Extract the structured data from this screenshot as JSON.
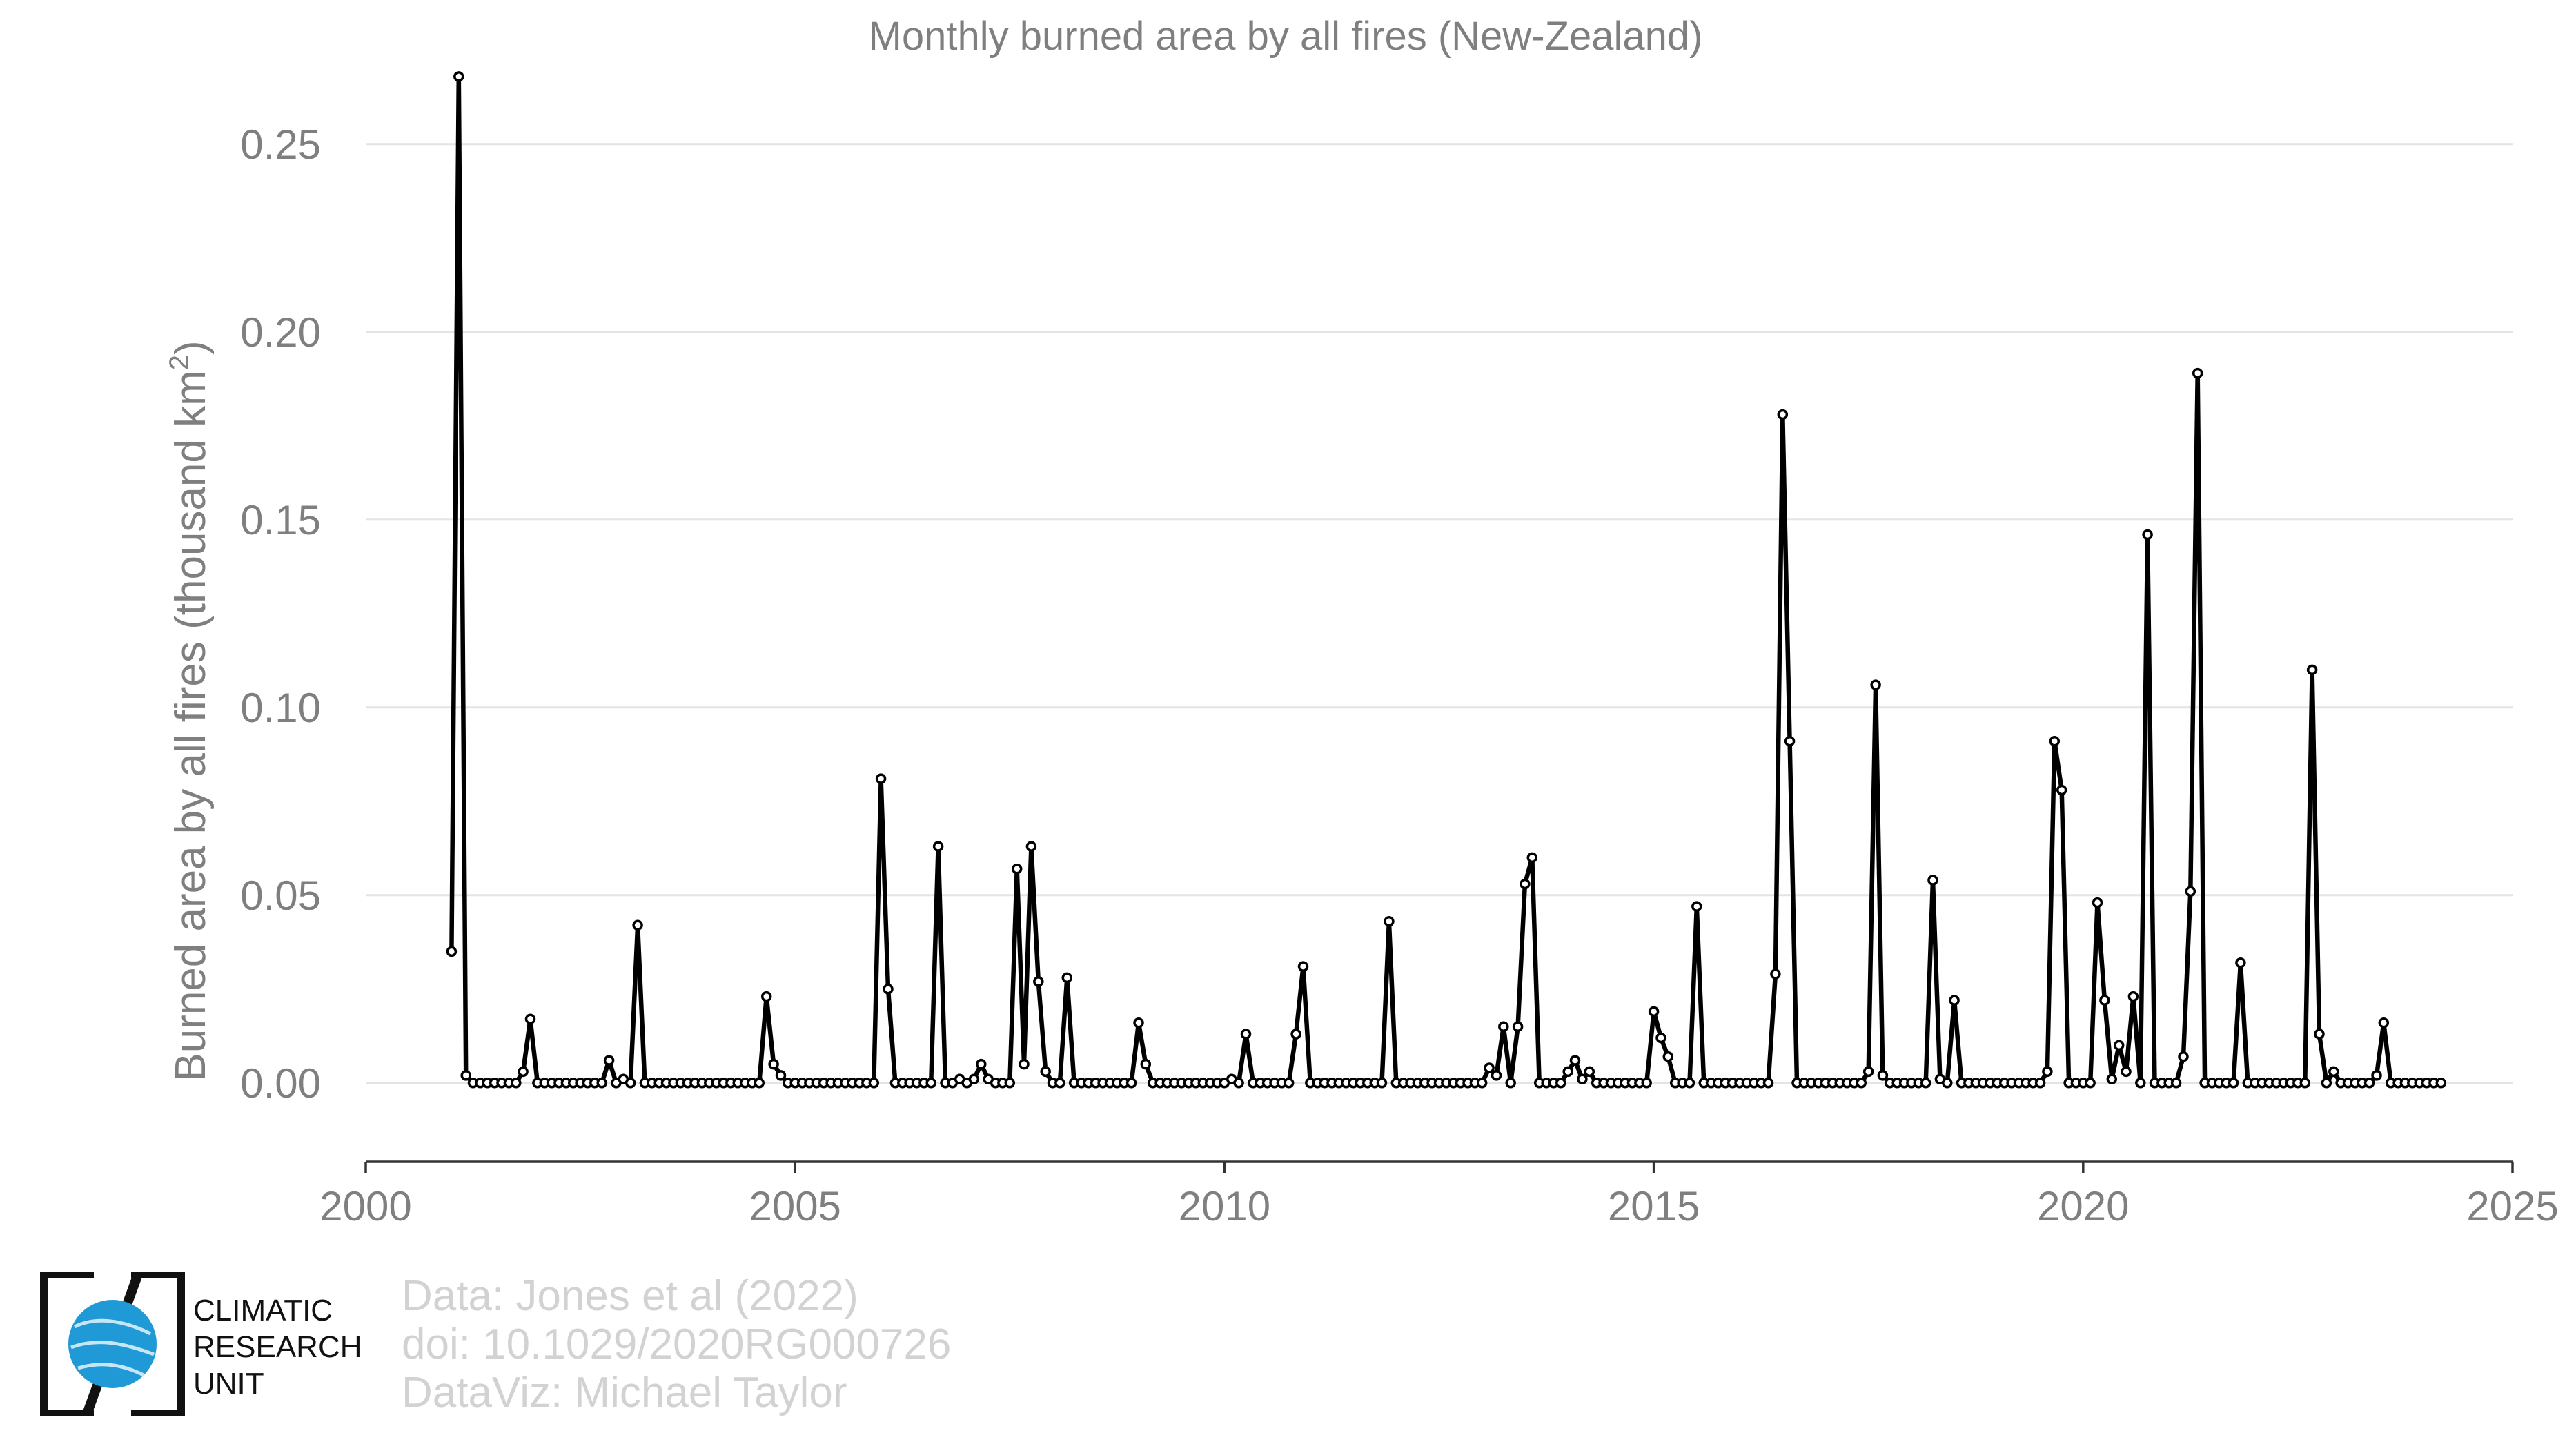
{
  "chart_data": {
    "type": "line",
    "title": "Monthly burned area by all fires (New-Zealand)",
    "ylabel": "Burned area by all fires (thousand km",
    "ylabel_sup": "2",
    "ylabel_end": ")",
    "xlabel": "",
    "xlim": [
      2000,
      2025
    ],
    "ylim": [
      -0.021,
      0.27
    ],
    "x_ticks": [
      2000,
      2005,
      2010,
      2015,
      2020,
      2025
    ],
    "x_tick_labels": [
      "2000",
      "2005",
      "2010",
      "2015",
      "2020",
      "2025"
    ],
    "y_ticks": [
      0,
      0.05,
      0.1,
      0.15,
      0.2,
      0.25
    ],
    "y_tick_labels": [
      "0.00",
      "0.05",
      "0.10",
      "0.15",
      "0.20",
      "0.25"
    ],
    "grid": true,
    "start": "2001-01",
    "frequency": "monthly",
    "series": [
      {
        "values": [
          0.035,
          0.268,
          0.002,
          0,
          0,
          0,
          0,
          0,
          0,
          0,
          0.003,
          0.017,
          0,
          0,
          0,
          0,
          0,
          0,
          0,
          0,
          0,
          0,
          0.006,
          0,
          0.001,
          0,
          0.042,
          0,
          0,
          0,
          0,
          0,
          0,
          0,
          0,
          0,
          0,
          0,
          0,
          0,
          0,
          0,
          0,
          0,
          0.023,
          0.005,
          0.002,
          0,
          0,
          0,
          0,
          0,
          0,
          0,
          0,
          0,
          0,
          0,
          0,
          0,
          0.081,
          0.025,
          0,
          0,
          0,
          0,
          0,
          0,
          0.063,
          0,
          0,
          0.001,
          0,
          0.001,
          0.005,
          0.001,
          0,
          0,
          0,
          0.057,
          0.005,
          0.063,
          0.027,
          0.003,
          0,
          0,
          0.028,
          0,
          0,
          0,
          0,
          0,
          0,
          0,
          0,
          0,
          0.016,
          0.005,
          0,
          0,
          0,
          0,
          0,
          0,
          0,
          0,
          0,
          0,
          0,
          0.001,
          0,
          0.013,
          0,
          0,
          0,
          0,
          0,
          0,
          0.013,
          0.031,
          0,
          0,
          0,
          0,
          0,
          0,
          0,
          0,
          0,
          0,
          0,
          0.043,
          0,
          0,
          0,
          0,
          0,
          0,
          0,
          0,
          0,
          0,
          0,
          0,
          0,
          0.004,
          0.002,
          0.015,
          0,
          0.015,
          0.053,
          0.06,
          0,
          0,
          0,
          0,
          0.003,
          0.006,
          0.001,
          0.003,
          0,
          0,
          0,
          0,
          0,
          0,
          0,
          0,
          0.019,
          0.012,
          0.007,
          0,
          0,
          0,
          0.047,
          0,
          0,
          0,
          0,
          0,
          0,
          0,
          0,
          0,
          0,
          0.029,
          0.178,
          0.091,
          0,
          0,
          0,
          0,
          0,
          0,
          0,
          0,
          0,
          0,
          0.003,
          0.106,
          0.002,
          0,
          0,
          0,
          0,
          0,
          0,
          0.054,
          0.001,
          0,
          0.022,
          0,
          0,
          0,
          0,
          0,
          0,
          0,
          0,
          0,
          0,
          0,
          0,
          0.003,
          0.091,
          0.078,
          0,
          0,
          0,
          0,
          0.048,
          0.022,
          0.001,
          0.01,
          0.003,
          0.023,
          0,
          0.146,
          0,
          0,
          0,
          0,
          0.007,
          0.051,
          0.189,
          0,
          0,
          0,
          0,
          0,
          0.032,
          0,
          0,
          0,
          0,
          0,
          0,
          0,
          0,
          0,
          0.11,
          0.013,
          0,
          0.003,
          0,
          0,
          0,
          0,
          0,
          0.002,
          0.016,
          0,
          0,
          0,
          0,
          0,
          0,
          0,
          0
        ]
      }
    ]
  },
  "credits": {
    "line1": "Data: Jones et al (2022)",
    "line2": "doi: 10.1029/2020RG000726",
    "line3": "DataViz: Michael Taylor"
  },
  "logo": {
    "line1": "CLIMATIC",
    "line2": "RESEARCH",
    "line3": "UNIT",
    "globe_color": "#1f9ad6"
  }
}
